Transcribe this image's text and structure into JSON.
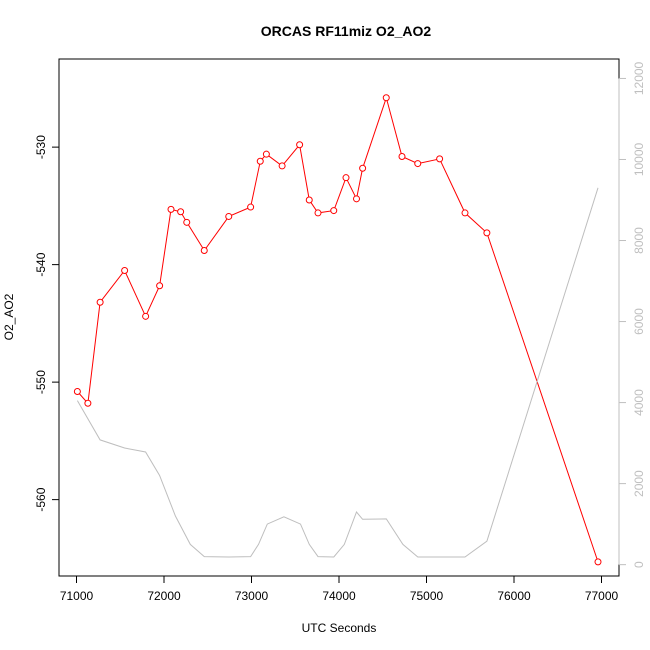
{
  "chart_data": {
    "type": "line",
    "title": "ORCAS RF11miz O2_AO2",
    "xlabel": "UTC Seconds",
    "ylabel": "O2_AO2",
    "xlim": [
      70800,
      77200
    ],
    "ylim": [
      -566.5,
      -522.5
    ],
    "y2lim": [
      -280,
      12480
    ],
    "x_ticks": [
      71000,
      72000,
      73000,
      74000,
      75000,
      76000,
      77000
    ],
    "y_ticks": [
      -530,
      -540,
      -550,
      -560
    ],
    "y2_ticks": [
      0,
      2000,
      4000,
      6000,
      8000,
      10000,
      12000
    ],
    "series": [
      {
        "axis": "left",
        "color": "#ff0000",
        "marker": "open-circle",
        "x": [
          71010,
          71130,
          71270,
          71550,
          71790,
          71950,
          72080,
          72190,
          72260,
          72460,
          72740,
          72990,
          73100,
          73170,
          73350,
          73550,
          73660,
          73760,
          73940,
          74080,
          74200,
          74270,
          74540,
          74720,
          74900,
          75150,
          75440,
          75690,
          76960
        ],
        "y": [
          -550.8,
          -551.8,
          -543.2,
          -540.5,
          -544.4,
          -541.8,
          -535.3,
          -535.5,
          -536.4,
          -538.8,
          -535.9,
          -535.1,
          -531.2,
          -530.6,
          -531.6,
          -529.8,
          -534.5,
          -535.6,
          -535.4,
          -532.6,
          -534.4,
          -531.8,
          -525.8,
          -530.8,
          -531.4,
          -531.0,
          -535.6,
          -537.3,
          -565.3
        ]
      },
      {
        "axis": "right",
        "color": "#bebebe",
        "marker": "none",
        "x": [
          71010,
          71270,
          71550,
          71790,
          71950,
          72130,
          72300,
          72460,
          72740,
          72990,
          73080,
          73180,
          73370,
          73560,
          73660,
          73760,
          73940,
          74060,
          74200,
          74270,
          74540,
          74730,
          74900,
          75150,
          75440,
          75690,
          76960
        ],
        "y": [
          4050,
          3080,
          2880,
          2780,
          2200,
          1200,
          500,
          200,
          190,
          200,
          500,
          1000,
          1180,
          1000,
          500,
          200,
          190,
          500,
          1300,
          1120,
          1130,
          500,
          190,
          190,
          190,
          580,
          9300
        ]
      }
    ]
  }
}
